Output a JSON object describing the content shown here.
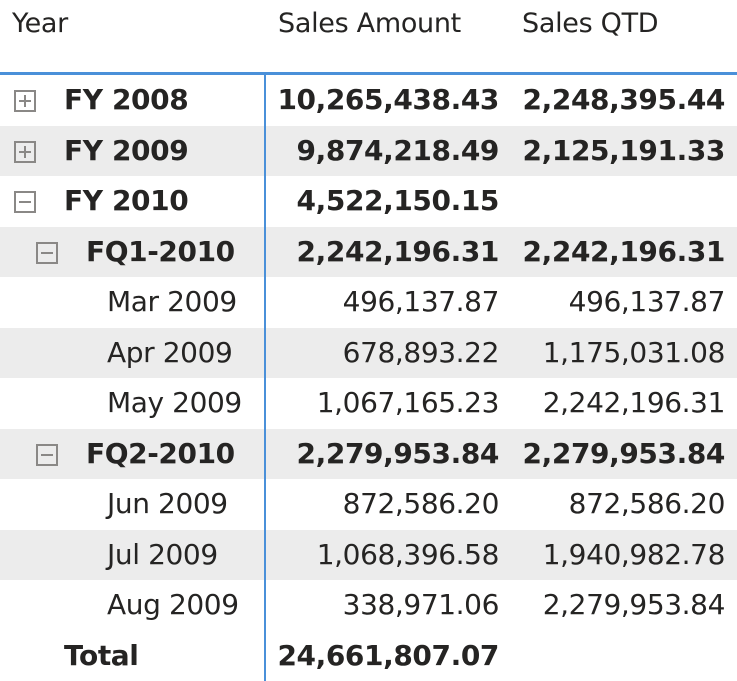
{
  "headers": {
    "year": "Year",
    "sales_amount": "Sales Amount",
    "sales_qtd": "Sales QTD"
  },
  "rows": [
    {
      "label": "FY 2008",
      "sales_amount": "10,265,438.43",
      "sales_qtd": "2,248,395.44",
      "expander": "plus-icon"
    },
    {
      "label": "FY 2009",
      "sales_amount": "9,874,218.49",
      "sales_qtd": "2,125,191.33",
      "expander": "plus-icon"
    },
    {
      "label": "FY 2010",
      "sales_amount": "4,522,150.15",
      "sales_qtd": "",
      "expander": "minus-icon"
    },
    {
      "label": "FQ1-2010",
      "sales_amount": "2,242,196.31",
      "sales_qtd": "2,242,196.31",
      "expander": "minus-icon"
    },
    {
      "label": "Mar 2009",
      "sales_amount": "496,137.87",
      "sales_qtd": "496,137.87"
    },
    {
      "label": "Apr 2009",
      "sales_amount": "678,893.22",
      "sales_qtd": "1,175,031.08"
    },
    {
      "label": "May 2009",
      "sales_amount": "1,067,165.23",
      "sales_qtd": "2,242,196.31"
    },
    {
      "label": "FQ2-2010",
      "sales_amount": "2,279,953.84",
      "sales_qtd": "2,279,953.84",
      "expander": "minus-icon"
    },
    {
      "label": "Jun 2009",
      "sales_amount": "872,586.20",
      "sales_qtd": "872,586.20"
    },
    {
      "label": "Jul 2009",
      "sales_amount": "1,068,396.58",
      "sales_qtd": "1,940,982.78"
    },
    {
      "label": "Aug 2009",
      "sales_amount": "338,971.06",
      "sales_qtd": "2,279,953.84"
    }
  ],
  "total": {
    "label": "Total",
    "sales_amount": "24,661,807.07",
    "sales_qtd": ""
  },
  "colors": {
    "accent_line": "#4a90d9",
    "row_shade": "#ececec",
    "text": "#252423",
    "expander": "#8a8886"
  }
}
